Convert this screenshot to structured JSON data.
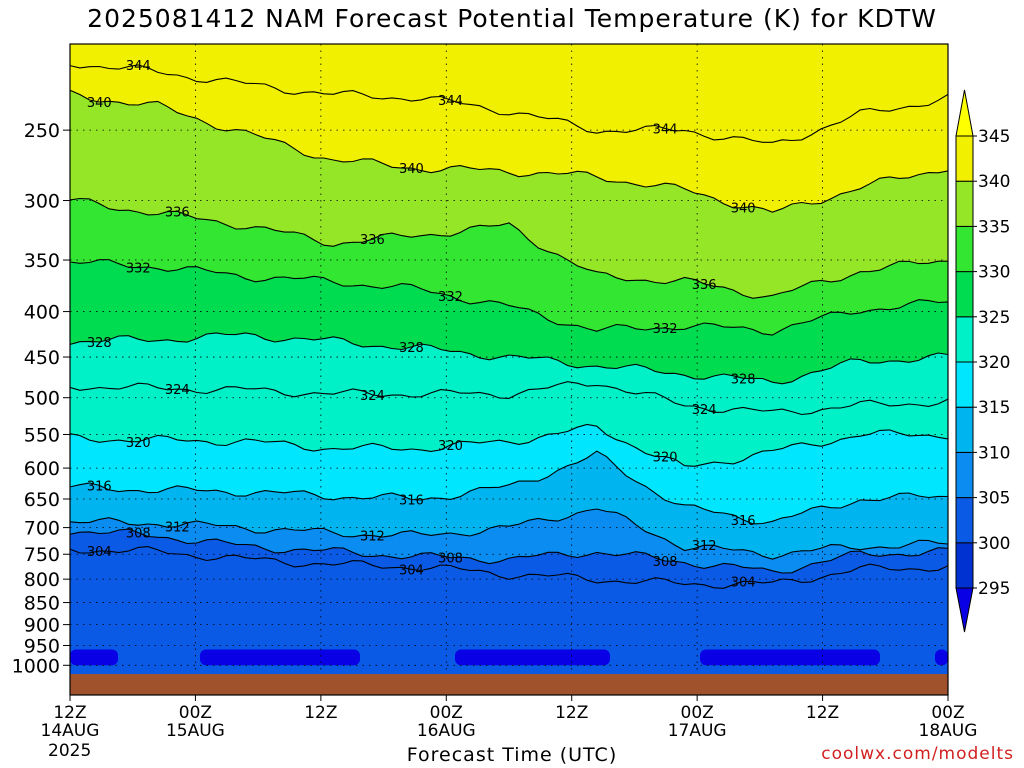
{
  "chart_data": {
    "type": "heatmap",
    "title": "2025081412 NAM Forecast Potential Temperature (K) for KDTW",
    "xlabel": "Forecast Time (UTC)",
    "ylabel": "",
    "y_axis": {
      "scale": "pressure (log-style, decreasing upward)",
      "ylim": [
        1000,
        200
      ],
      "tick_labels": [
        "250",
        "300",
        "350",
        "400",
        "450",
        "500",
        "550",
        "600",
        "650",
        "700",
        "750",
        "800",
        "850",
        "900",
        "950",
        "1000"
      ]
    },
    "x_axis": {
      "start": "2025-08-14T12:00Z",
      "end": "2025-08-18T00:00Z",
      "tick_labels": [
        {
          "time": "12Z",
          "date": "14AUG"
        },
        {
          "time": "00Z",
          "date": "15AUG"
        },
        {
          "time": "12Z",
          "date": ""
        },
        {
          "time": "00Z",
          "date": "16AUG"
        },
        {
          "time": "12Z",
          "date": ""
        },
        {
          "time": "00Z",
          "date": "17AUG"
        },
        {
          "time": "12Z",
          "date": ""
        },
        {
          "time": "00Z",
          "date": "18AUG"
        }
      ],
      "year_label": "2025"
    },
    "colorbar": {
      "levels": [
        295,
        300,
        305,
        310,
        315,
        320,
        325,
        330,
        335,
        340,
        345
      ],
      "labels": [
        "295",
        "300",
        "305",
        "310",
        "315",
        "320",
        "325",
        "330",
        "335",
        "340",
        "345"
      ],
      "units": "K"
    },
    "contours": [
      {
        "label": "304",
        "pressures": [
          740,
          745,
          760,
          770,
          775,
          790,
          800,
          810,
          810,
          780,
          775
        ]
      },
      {
        "label": "308",
        "pressures": [
          705,
          715,
          735,
          745,
          755,
          760,
          745,
          765,
          785,
          750,
          745
        ]
      },
      {
        "label": "312",
        "pressures": [
          690,
          692,
          700,
          710,
          715,
          700,
          665,
          735,
          750,
          735,
          730
        ]
      },
      {
        "label": "316",
        "pressures": [
          630,
          635,
          638,
          645,
          650,
          630,
          580,
          665,
          690,
          650,
          645
        ]
      },
      {
        "label": "320",
        "pressures": [
          555,
          558,
          560,
          570,
          570,
          560,
          540,
          600,
          575,
          550,
          550
        ]
      },
      {
        "label": "324",
        "pressures": [
          485,
          488,
          490,
          495,
          495,
          495,
          480,
          510,
          520,
          510,
          505
        ]
      },
      {
        "label": "328",
        "pressures": [
          432,
          430,
          425,
          432,
          440,
          450,
          460,
          470,
          480,
          455,
          450
        ]
      },
      {
        "label": "332",
        "pressures": [
          352,
          356,
          365,
          370,
          378,
          395,
          420,
          415,
          420,
          398,
          390
        ]
      },
      {
        "label": "336",
        "pressures": [
          300,
          310,
          320,
          335,
          328,
          320,
          365,
          370,
          385,
          360,
          350
        ]
      },
      {
        "label": "340",
        "pressures": [
          228,
          235,
          252,
          270,
          276,
          278,
          282,
          292,
          310,
          290,
          275
        ]
      },
      {
        "label": "344",
        "pressures": [
          210,
          215,
          222,
          228,
          230,
          238,
          250,
          250,
          260,
          240,
          230
        ]
      }
    ],
    "ground_pressure": 985,
    "legend": "colorbar-right",
    "grid": true
  },
  "credit": "coolwx.com/modelts"
}
